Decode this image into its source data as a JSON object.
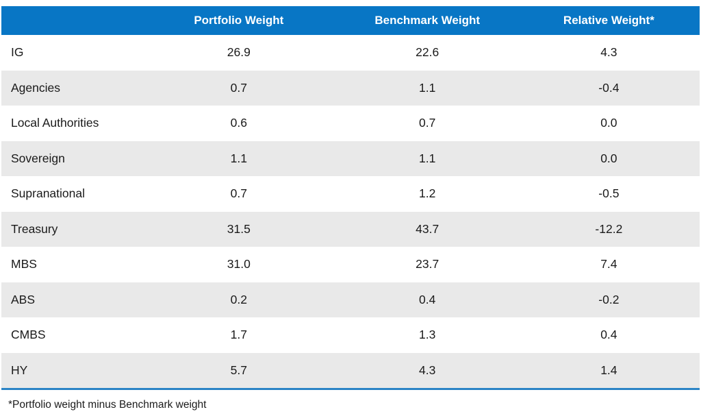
{
  "colors": {
    "header_bg": "#0876C5",
    "stripe": "#E9E9E9",
    "rule": "#2B84C6",
    "text": "#1A1A1A"
  },
  "chart_data": {
    "type": "table",
    "title": "",
    "columns": [
      "Portfolio Weight",
      "Benchmark Weight",
      "Relative Weight*"
    ],
    "rows": [
      {
        "label": "IG",
        "portfolio": "26.9",
        "benchmark": "22.6",
        "relative": "4.3"
      },
      {
        "label": "Agencies",
        "portfolio": "0.7",
        "benchmark": "1.1",
        "relative": "-0.4"
      },
      {
        "label": "Local Authorities",
        "portfolio": "0.6",
        "benchmark": "0.7",
        "relative": "0.0"
      },
      {
        "label": "Sovereign",
        "portfolio": "1.1",
        "benchmark": "1.1",
        "relative": "0.0"
      },
      {
        "label": "Supranational",
        "portfolio": "0.7",
        "benchmark": "1.2",
        "relative": "-0.5"
      },
      {
        "label": "Treasury",
        "portfolio": "31.5",
        "benchmark": "43.7",
        "relative": "-12.2"
      },
      {
        "label": "MBS",
        "portfolio": "31.0",
        "benchmark": "23.7",
        "relative": "7.4"
      },
      {
        "label": "ABS",
        "portfolio": "0.2",
        "benchmark": "0.4",
        "relative": "-0.2"
      },
      {
        "label": "CMBS",
        "portfolio": "1.7",
        "benchmark": "1.3",
        "relative": "0.4"
      },
      {
        "label": "HY",
        "portfolio": "5.7",
        "benchmark": "4.3",
        "relative": "1.4"
      }
    ],
    "footnote": "*Portfolio weight minus Benchmark weight"
  }
}
